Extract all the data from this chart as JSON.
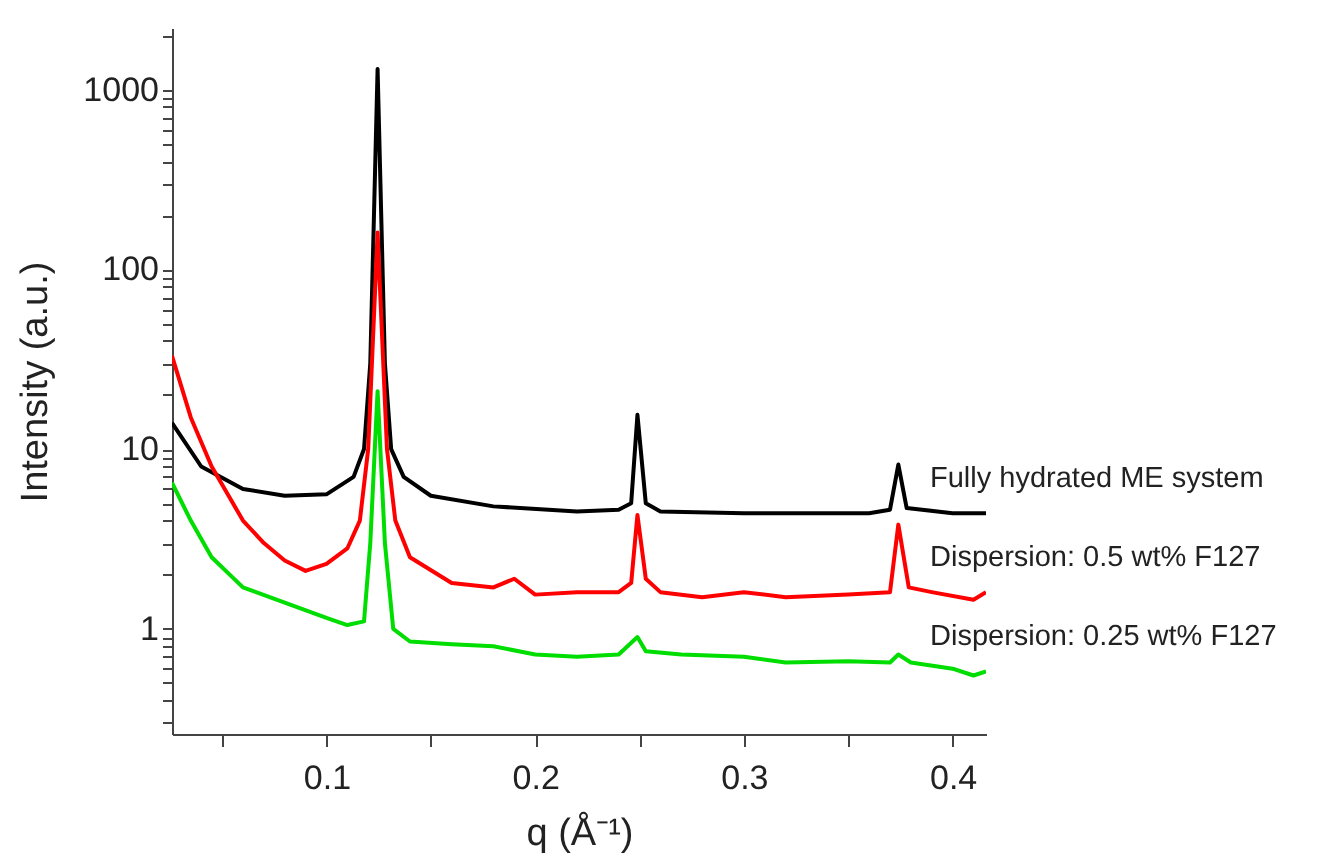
{
  "chart_data": {
    "type": "line",
    "xlabel": "q (Å⁻¹)",
    "ylabel": "Intensity (a.u.)",
    "log": "y",
    "legend": false,
    "grid": false,
    "marker": "none",
    "line_style": "solid",
    "xlim": [
      0.026,
      0.416
    ],
    "ylim": [
      0.26,
      2200
    ],
    "xticks": [
      {
        "value": 0.05,
        "label": null
      },
      0.1,
      {
        "value": 0.15,
        "label": null
      },
      0.2,
      {
        "value": 0.25,
        "label": null
      },
      0.3,
      {
        "value": 0.35,
        "label": null
      },
      0.4
    ],
    "yticks": [
      {
        "value": 0.3,
        "label": null
      },
      {
        "value": 0.4,
        "label": null
      },
      {
        "value": 0.5,
        "label": null
      },
      {
        "value": 0.6,
        "label": null
      },
      {
        "value": 0.7,
        "label": null
      },
      {
        "value": 0.8,
        "label": null
      },
      {
        "value": 0.9,
        "label": null
      },
      1,
      {
        "value": 2,
        "label": null
      },
      {
        "value": 3,
        "label": null
      },
      {
        "value": 4,
        "label": null
      },
      {
        "value": 5,
        "label": null
      },
      {
        "value": 6,
        "label": null
      },
      {
        "value": 7,
        "label": null
      },
      {
        "value": 8,
        "label": null
      },
      {
        "value": 9,
        "label": null
      },
      10,
      {
        "value": 20,
        "label": null
      },
      {
        "value": 30,
        "label": null
      },
      {
        "value": 40,
        "label": null
      },
      {
        "value": 50,
        "label": null
      },
      {
        "value": 60,
        "label": null
      },
      {
        "value": 70,
        "label": null
      },
      {
        "value": 80,
        "label": null
      },
      {
        "value": 90,
        "label": null
      },
      100,
      {
        "value": 200,
        "label": null
      },
      {
        "value": 300,
        "label": null
      },
      {
        "value": 400,
        "label": null
      },
      {
        "value": 500,
        "label": null
      },
      {
        "value": 600,
        "label": null
      },
      {
        "value": 700,
        "label": null
      },
      {
        "value": 800,
        "label": null
      },
      {
        "value": 900,
        "label": null
      },
      1000,
      {
        "value": 2000,
        "label": null
      }
    ],
    "series": [
      {
        "name": "Fully hydrated ME system",
        "color": "#000000",
        "x": [
          0.026,
          0.04,
          0.06,
          0.08,
          0.1,
          0.113,
          0.118,
          0.121,
          0.1245,
          0.128,
          0.131,
          0.137,
          0.15,
          0.18,
          0.22,
          0.24,
          0.246,
          0.249,
          0.253,
          0.26,
          0.3,
          0.36,
          0.37,
          0.374,
          0.378,
          0.4,
          0.416
        ],
        "values": [
          14,
          8,
          6,
          5.5,
          5.6,
          7,
          10,
          30,
          1300,
          30,
          10,
          7,
          5.5,
          4.8,
          4.5,
          4.6,
          5,
          15.5,
          5,
          4.5,
          4.4,
          4.4,
          4.6,
          8.2,
          4.7,
          4.4,
          4.4
        ]
      },
      {
        "name": "Dispersion: 0.5 wt% F127",
        "color": "#ff0000",
        "x": [
          0.026,
          0.035,
          0.045,
          0.06,
          0.07,
          0.08,
          0.09,
          0.1,
          0.11,
          0.116,
          0.12,
          0.1245,
          0.129,
          0.133,
          0.14,
          0.16,
          0.18,
          0.19,
          0.2,
          0.22,
          0.24,
          0.246,
          0.249,
          0.253,
          0.26,
          0.28,
          0.3,
          0.32,
          0.35,
          0.37,
          0.374,
          0.379,
          0.39,
          0.41,
          0.416
        ],
        "values": [
          33,
          15,
          8,
          4,
          3,
          2.4,
          2.1,
          2.3,
          2.8,
          4,
          10,
          160,
          10,
          4,
          2.5,
          1.8,
          1.7,
          1.9,
          1.55,
          1.6,
          1.6,
          1.8,
          4.3,
          1.9,
          1.6,
          1.5,
          1.6,
          1.5,
          1.55,
          1.6,
          3.8,
          1.7,
          1.6,
          1.45,
          1.6
        ]
      },
      {
        "name": "Dispersion: 0.25 wt% F127",
        "color": "#00dd00",
        "x": [
          0.026,
          0.035,
          0.045,
          0.06,
          0.08,
          0.1,
          0.11,
          0.118,
          0.121,
          0.1245,
          0.128,
          0.132,
          0.14,
          0.16,
          0.18,
          0.2,
          0.22,
          0.24,
          0.249,
          0.253,
          0.27,
          0.3,
          0.32,
          0.35,
          0.37,
          0.374,
          0.38,
          0.4,
          0.41,
          0.416
        ],
        "values": [
          6.5,
          4,
          2.5,
          1.7,
          1.4,
          1.15,
          1.05,
          1.1,
          3,
          21,
          3,
          1,
          0.85,
          0.82,
          0.8,
          0.72,
          0.7,
          0.72,
          0.9,
          0.75,
          0.72,
          0.7,
          0.65,
          0.66,
          0.65,
          0.72,
          0.65,
          0.6,
          0.55,
          0.58
        ]
      }
    ]
  }
}
